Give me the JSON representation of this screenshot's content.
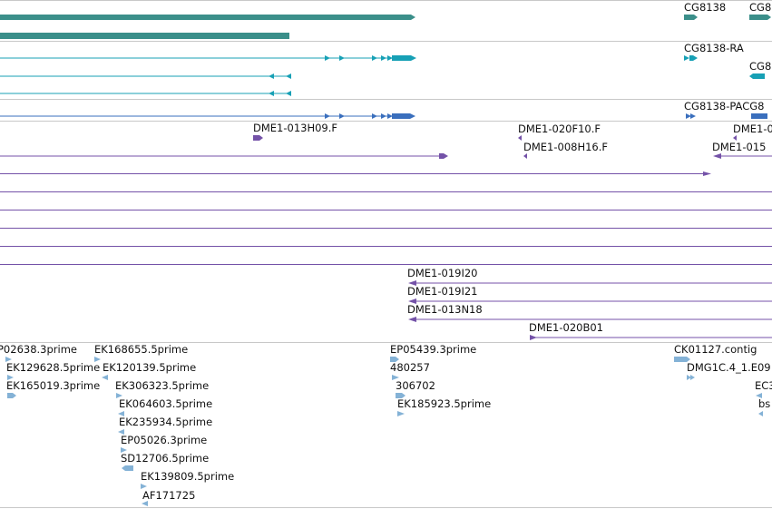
{
  "colors": {
    "gene_track": "#3b8f8a",
    "transcript": "#17a0b5",
    "protein": "#3a6fbd",
    "clone": "#7452a8",
    "est": "#84b2d6",
    "separator": "#c8c8c8"
  },
  "tracks": {
    "gene": {
      "labels": [
        {
          "id": "cg8138",
          "text": "CG8138"
        },
        {
          "id": "cg8-truncated",
          "text": "CG8"
        }
      ]
    },
    "transcripts": {
      "labels": [
        {
          "id": "cg8138-ra",
          "text": "CG8138-RA"
        },
        {
          "id": "cg8-ra-truncated",
          "text": "CG8"
        }
      ]
    },
    "proteins": {
      "labels": [
        {
          "id": "cg8138-pa",
          "text": "CG8138-PACG8"
        }
      ]
    },
    "clones": {
      "labels": [
        {
          "id": "dme1-013h09-f",
          "text": "DME1-013H09.F"
        },
        {
          "id": "dme1-020f10-f",
          "text": "DME1-020F10.F"
        },
        {
          "id": "dme1-008h16-f",
          "text": "DME1-008H16.F"
        },
        {
          "id": "dme1-0-truncated",
          "text": "DME1-0"
        },
        {
          "id": "dme1-015-truncated",
          "text": "DME1-015"
        },
        {
          "id": "dme1-019i20",
          "text": "DME1-019I20"
        },
        {
          "id": "dme1-019i21",
          "text": "DME1-019I21"
        },
        {
          "id": "dme1-013n18",
          "text": "DME1-013N18"
        },
        {
          "id": "dme1-020b01",
          "text": "DME1-020B01"
        }
      ]
    },
    "ests": {
      "labels": [
        {
          "id": "p02638-3prime",
          "text": "P02638.3prime"
        },
        {
          "id": "ek129628-5prime",
          "text": "EK129628.5prime"
        },
        {
          "id": "ek165019-3prime",
          "text": "EK165019.3prime"
        },
        {
          "id": "ek168655-5prime",
          "text": "EK168655.5prime"
        },
        {
          "id": "ek120139-5prime",
          "text": "EK120139.5prime"
        },
        {
          "id": "ek306323-5prime",
          "text": "EK306323.5prime"
        },
        {
          "id": "ek064603-5prime",
          "text": "EK064603.5prime"
        },
        {
          "id": "ek235934-5prime",
          "text": "EK235934.5prime"
        },
        {
          "id": "ep05026-3prime",
          "text": "EP05026.3prime"
        },
        {
          "id": "sd12706-5prime",
          "text": "SD12706.5prime"
        },
        {
          "id": "ek139809-5prime",
          "text": "EK139809.5prime"
        },
        {
          "id": "af171725",
          "text": "AF171725"
        },
        {
          "id": "ep05439-3prime",
          "text": "EP05439.3prime"
        },
        {
          "id": "est-480257",
          "text": "480257"
        },
        {
          "id": "est-306702",
          "text": "306702"
        },
        {
          "id": "ek185923-5prime",
          "text": "EK185923.5prime"
        },
        {
          "id": "ck01127-contig",
          "text": "CK01127.contig"
        },
        {
          "id": "dmg1c-truncated",
          "text": "DMG1C.4_1.E09"
        },
        {
          "id": "ec3-truncated",
          "text": "EC3"
        },
        {
          "id": "bs-truncated",
          "text": "bs"
        }
      ]
    }
  }
}
